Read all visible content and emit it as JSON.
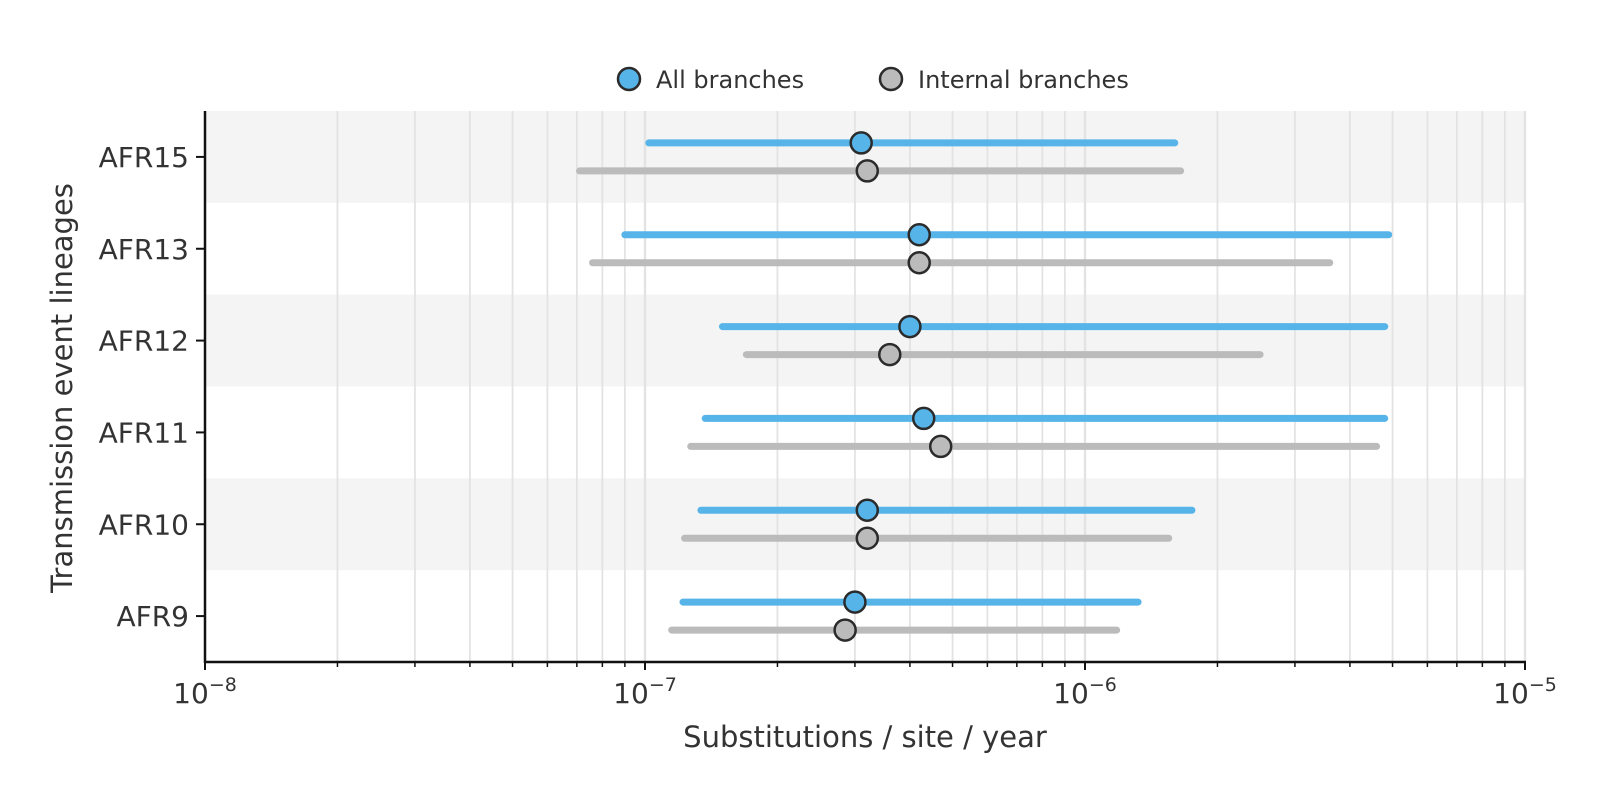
{
  "chart_data": {
    "type": "interval-dot",
    "xscale": "log",
    "xlim": [
      1e-08,
      1e-05
    ],
    "xlabel": "Substitutions / site / year",
    "ylabel": "Transmission event lineages",
    "x_ticks": [
      {
        "value": 1e-08,
        "base": "10",
        "exp": "−8"
      },
      {
        "value": 1e-07,
        "base": "10",
        "exp": "−7"
      },
      {
        "value": 1e-06,
        "base": "10",
        "exp": "−6"
      },
      {
        "value": 1e-05,
        "base": "10",
        "exp": "−5"
      }
    ],
    "categories": [
      "AFR15",
      "AFR13",
      "AFR12",
      "AFR11",
      "AFR10",
      "AFR9"
    ],
    "legend": {
      "position": "top-center"
    },
    "grid": true,
    "series": [
      {
        "name": "All branches",
        "color": "#56b4e9",
        "points": [
          {
            "category": "AFR15",
            "estimate": 3.1e-07,
            "lower": 1.02e-07,
            "upper": 1.6e-06
          },
          {
            "category": "AFR13",
            "estimate": 4.2e-07,
            "lower": 9e-08,
            "upper": 4.9e-06
          },
          {
            "category": "AFR12",
            "estimate": 4e-07,
            "lower": 1.5e-07,
            "upper": 4.8e-06
          },
          {
            "category": "AFR11",
            "estimate": 4.3e-07,
            "lower": 1.37e-07,
            "upper": 4.8e-06
          },
          {
            "category": "AFR10",
            "estimate": 3.2e-07,
            "lower": 1.34e-07,
            "upper": 1.75e-06
          },
          {
            "category": "AFR9",
            "estimate": 3e-07,
            "lower": 1.22e-07,
            "upper": 1.32e-06
          }
        ]
      },
      {
        "name": "Internal branches",
        "color": "#bbbbbb",
        "points": [
          {
            "category": "AFR15",
            "estimate": 3.2e-07,
            "lower": 7.1e-08,
            "upper": 1.65e-06
          },
          {
            "category": "AFR13",
            "estimate": 4.2e-07,
            "lower": 7.6e-08,
            "upper": 3.6e-06
          },
          {
            "category": "AFR12",
            "estimate": 3.6e-07,
            "lower": 1.7e-07,
            "upper": 2.5e-06
          },
          {
            "category": "AFR11",
            "estimate": 4.7e-07,
            "lower": 1.27e-07,
            "upper": 4.6e-06
          },
          {
            "category": "AFR10",
            "estimate": 3.2e-07,
            "lower": 1.23e-07,
            "upper": 1.55e-06
          },
          {
            "category": "AFR9",
            "estimate": 2.85e-07,
            "lower": 1.15e-07,
            "upper": 1.18e-06
          }
        ]
      }
    ]
  }
}
